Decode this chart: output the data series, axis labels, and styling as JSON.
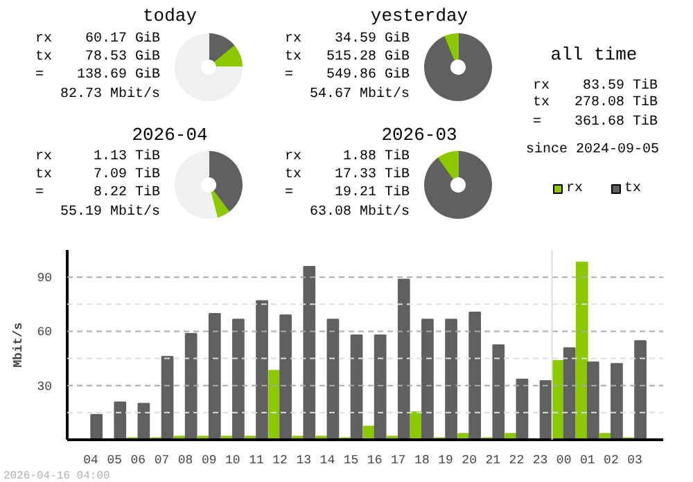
{
  "chart_data": [
    {
      "type": "donut",
      "title": "today",
      "categories": [
        null,
        null,
        null
      ],
      "values": [
        14.2,
        10.8,
        75
      ],
      "colors": [
        "#606060",
        "#8cc800",
        "#f0f0f0"
      ],
      "annotations": [
        "rx 60.17 GiB",
        "tx 78.53 GiB",
        "= 138.69 GiB",
        "82.73 Mbit/s"
      ]
    },
    {
      "type": "donut",
      "title": "yesterday",
      "categories": [
        null,
        null
      ],
      "values": [
        93.7,
        6.3
      ],
      "colors": [
        "#606060",
        "#8cc800"
      ],
      "annotations": [
        "rx 34.59 GiB",
        "tx 515.28 GiB",
        "= 549.86 GiB",
        "54.67 Mbit/s"
      ]
    },
    {
      "type": "donut",
      "title": "2026-04",
      "categories": [
        null,
        null,
        null
      ],
      "values": [
        39.7,
        6.3,
        54
      ],
      "colors": [
        "#606060",
        "#8cc800",
        "#f0f0f0"
      ],
      "annotations": [
        "rx 1.13 TiB",
        "tx 7.09 TiB",
        "= 8.22 TiB",
        "55.19 Mbit/s"
      ]
    },
    {
      "type": "donut",
      "title": "2026-03",
      "categories": [
        null,
        null
      ],
      "values": [
        90.2,
        9.8
      ],
      "colors": [
        "#606060",
        "#8cc800"
      ],
      "annotations": [
        "rx 1.88 TiB",
        "tx 17.33 TiB",
        "= 19.21 TiB",
        "63.08 Mbit/s"
      ]
    },
    {
      "type": "other",
      "title": "all time",
      "annotations": [
        "rx 83.59 TiB",
        "tx 278.08 TiB",
        "= 361.68 TiB",
        "since 2024-09-05"
      ]
    },
    {
      "type": "bar",
      "ylabel": "Mbit/s",
      "categories": [
        "04",
        "05",
        "06",
        "07",
        "08",
        "09",
        "10",
        "11",
        "12",
        "13",
        "14",
        "15",
        "16",
        "17",
        "18",
        "19",
        "20",
        "21",
        "22",
        "23",
        "00",
        "01",
        "02",
        "03"
      ],
      "series": [
        {
          "name": "rx",
          "color": "#8cc800",
          "values": [
            0,
            0,
            1,
            1,
            1.8,
            1.8,
            1.8,
            1.8,
            38.2,
            1.8,
            1.8,
            1,
            7.4,
            1.8,
            15.3,
            1,
            3.4,
            1,
            3.4,
            0,
            43.7,
            98.2,
            3.4,
            1
          ]
        },
        {
          "name": "tx",
          "color": "#606060",
          "values": [
            13.9,
            20.8,
            20,
            46,
            58.7,
            69.7,
            66.6,
            76.8,
            69,
            95.8,
            66.6,
            57.9,
            57.9,
            88.7,
            66.6,
            66.6,
            70.5,
            52.4,
            33.4,
            32.6,
            50.8,
            42.9,
            42.1,
            54.7
          ]
        }
      ],
      "ylim": [
        0,
        105
      ],
      "yticks": [
        {
          "value": 15,
          "label": null
        },
        30,
        {
          "value": 45,
          "label": null
        },
        60,
        {
          "value": 75,
          "label": null
        },
        90
      ],
      "grid": "y",
      "legend": "top right",
      "ref_lines": [
        {
          "axis": "x",
          "value": "00",
          "color": "#dddddd"
        }
      ],
      "annotations": [
        "2026-04-16 04:00"
      ]
    }
  ]
}
